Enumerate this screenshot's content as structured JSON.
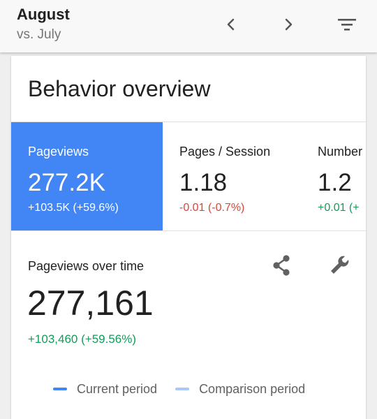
{
  "header": {
    "title": "August",
    "subtitle": "vs. July",
    "prev_icon": "chevron-left-icon",
    "next_icon": "chevron-right-icon",
    "filter_icon": "filter-icon"
  },
  "card": {
    "title": "Behavior overview"
  },
  "metrics": [
    {
      "label": "Pageviews",
      "value": "277.2K",
      "delta": "+103.5K (+59.6%)",
      "selected": true
    },
    {
      "label": "Pages / Session",
      "value": "1.18",
      "delta": "-0.01 (-0.7%)",
      "trend": "negative"
    },
    {
      "label": "Number",
      "value": "1.2",
      "delta": "+0.01 (+",
      "trend": "positive"
    }
  ],
  "chart": {
    "title": "Pageviews over time",
    "value": "277,161",
    "delta": "+103,460 (+59.56%)",
    "share_icon": "share-icon",
    "settings_icon": "wrench-icon"
  },
  "legend": {
    "current_label": "Current period",
    "comparison_label": "Comparison period"
  },
  "colors": {
    "accent": "#4285f4",
    "comparison": "#a8c7fa",
    "positive": "#0f9d58",
    "negative": "#db4437"
  }
}
